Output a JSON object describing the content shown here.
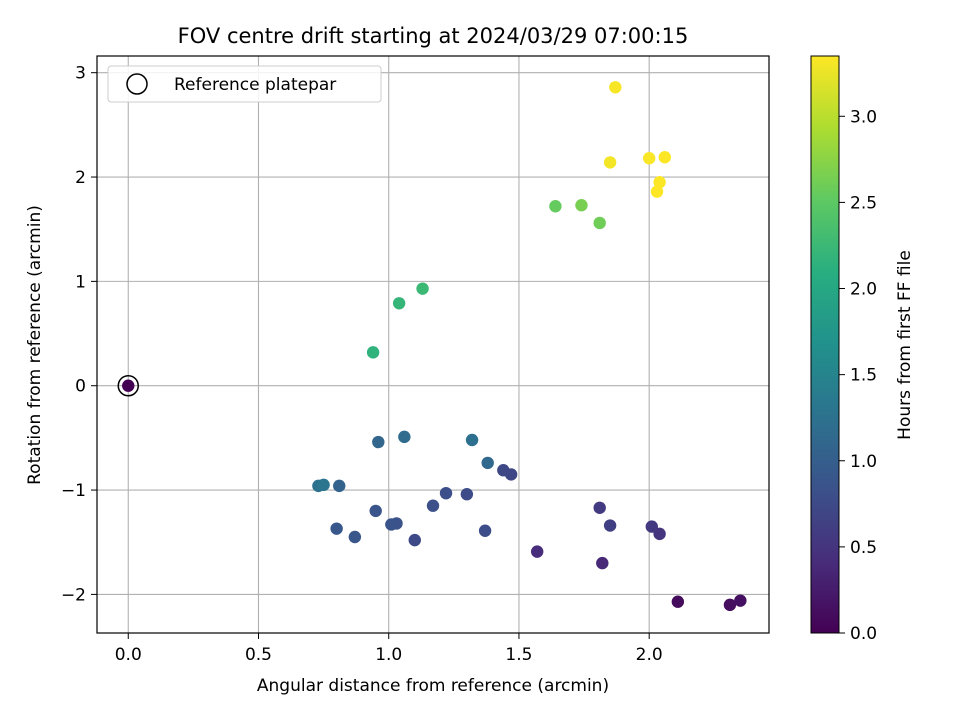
{
  "chart_data": {
    "type": "scatter",
    "title": "FOV centre drift starting at 2024/03/29 07:00:15",
    "xlabel": "Angular distance from reference (arcmin)",
    "ylabel": "Rotation from reference (arcmin)",
    "xlim": [
      -0.12,
      2.46
    ],
    "ylim": [
      -2.37,
      3.16
    ],
    "xticks": [
      0.0,
      0.5,
      1.0,
      1.5,
      2.0
    ],
    "xtick_labels": [
      "0.0",
      "0.5",
      "1.0",
      "1.5",
      "2.0"
    ],
    "yticks": [
      -2,
      -1,
      0,
      1,
      2,
      3
    ],
    "ytick_labels": [
      "−2",
      "−1",
      "0",
      "1",
      "2",
      "3"
    ],
    "grid": true,
    "legend": {
      "placement": "upper-left",
      "entries": [
        {
          "label": "Reference platepar",
          "marker": "open-circle"
        }
      ]
    },
    "colorbar": {
      "label": "Hours from first FF file",
      "colormap": "viridis",
      "range": [
        0.0,
        3.35
      ],
      "ticks": [
        0.0,
        0.5,
        1.0,
        1.5,
        2.0,
        2.5,
        3.0
      ],
      "tick_labels": [
        "0.0",
        "0.5",
        "1.0",
        "1.5",
        "2.0",
        "2.5",
        "3.0"
      ]
    },
    "reference_point": {
      "x": 0.0,
      "y": 0.0
    },
    "points": [
      {
        "x": 0.0,
        "y": 0.0,
        "c": 0.0
      },
      {
        "x": 2.11,
        "y": -2.07,
        "c": 0.1
      },
      {
        "x": 2.31,
        "y": -2.1,
        "c": 0.12
      },
      {
        "x": 2.35,
        "y": -2.06,
        "c": 0.14
      },
      {
        "x": 1.82,
        "y": -1.7,
        "c": 0.38
      },
      {
        "x": 1.57,
        "y": -1.59,
        "c": 0.42
      },
      {
        "x": 2.04,
        "y": -1.42,
        "c": 0.5
      },
      {
        "x": 2.01,
        "y": -1.35,
        "c": 0.55
      },
      {
        "x": 1.81,
        "y": -1.17,
        "c": 0.58
      },
      {
        "x": 1.85,
        "y": -1.34,
        "c": 0.62
      },
      {
        "x": 1.47,
        "y": -0.85,
        "c": 0.7
      },
      {
        "x": 1.44,
        "y": -0.81,
        "c": 0.72
      },
      {
        "x": 1.1,
        "y": -1.48,
        "c": 0.74
      },
      {
        "x": 1.3,
        "y": -1.04,
        "c": 0.76
      },
      {
        "x": 1.37,
        "y": -1.39,
        "c": 0.78
      },
      {
        "x": 1.22,
        "y": -1.03,
        "c": 0.8
      },
      {
        "x": 1.17,
        "y": -1.15,
        "c": 0.82
      },
      {
        "x": 1.03,
        "y": -1.32,
        "c": 0.84
      },
      {
        "x": 1.01,
        "y": -1.33,
        "c": 0.86
      },
      {
        "x": 0.95,
        "y": -1.2,
        "c": 0.88
      },
      {
        "x": 0.87,
        "y": -1.45,
        "c": 0.9
      },
      {
        "x": 0.8,
        "y": -1.37,
        "c": 0.92
      },
      {
        "x": 0.81,
        "y": -0.96,
        "c": 1.05
      },
      {
        "x": 0.96,
        "y": -0.54,
        "c": 1.1
      },
      {
        "x": 1.38,
        "y": -0.74,
        "c": 1.12
      },
      {
        "x": 1.06,
        "y": -0.49,
        "c": 1.18
      },
      {
        "x": 1.32,
        "y": -0.52,
        "c": 1.22
      },
      {
        "x": 0.73,
        "y": -0.96,
        "c": 1.25
      },
      {
        "x": 0.75,
        "y": -0.95,
        "c": 1.3
      },
      {
        "x": 0.94,
        "y": 0.32,
        "c": 2.15
      },
      {
        "x": 1.04,
        "y": 0.79,
        "c": 2.2
      },
      {
        "x": 1.13,
        "y": 0.93,
        "c": 2.25
      },
      {
        "x": 1.64,
        "y": 1.72,
        "c": 2.55
      },
      {
        "x": 1.81,
        "y": 1.56,
        "c": 2.6
      },
      {
        "x": 1.74,
        "y": 1.73,
        "c": 2.65
      },
      {
        "x": 1.85,
        "y": 2.14,
        "c": 3.3
      },
      {
        "x": 1.87,
        "y": 2.86,
        "c": 3.32
      },
      {
        "x": 2.0,
        "y": 2.18,
        "c": 3.33
      },
      {
        "x": 2.06,
        "y": 2.19,
        "c": 3.34
      },
      {
        "x": 2.04,
        "y": 1.95,
        "c": 3.34
      },
      {
        "x": 2.03,
        "y": 1.86,
        "c": 3.35
      }
    ]
  }
}
